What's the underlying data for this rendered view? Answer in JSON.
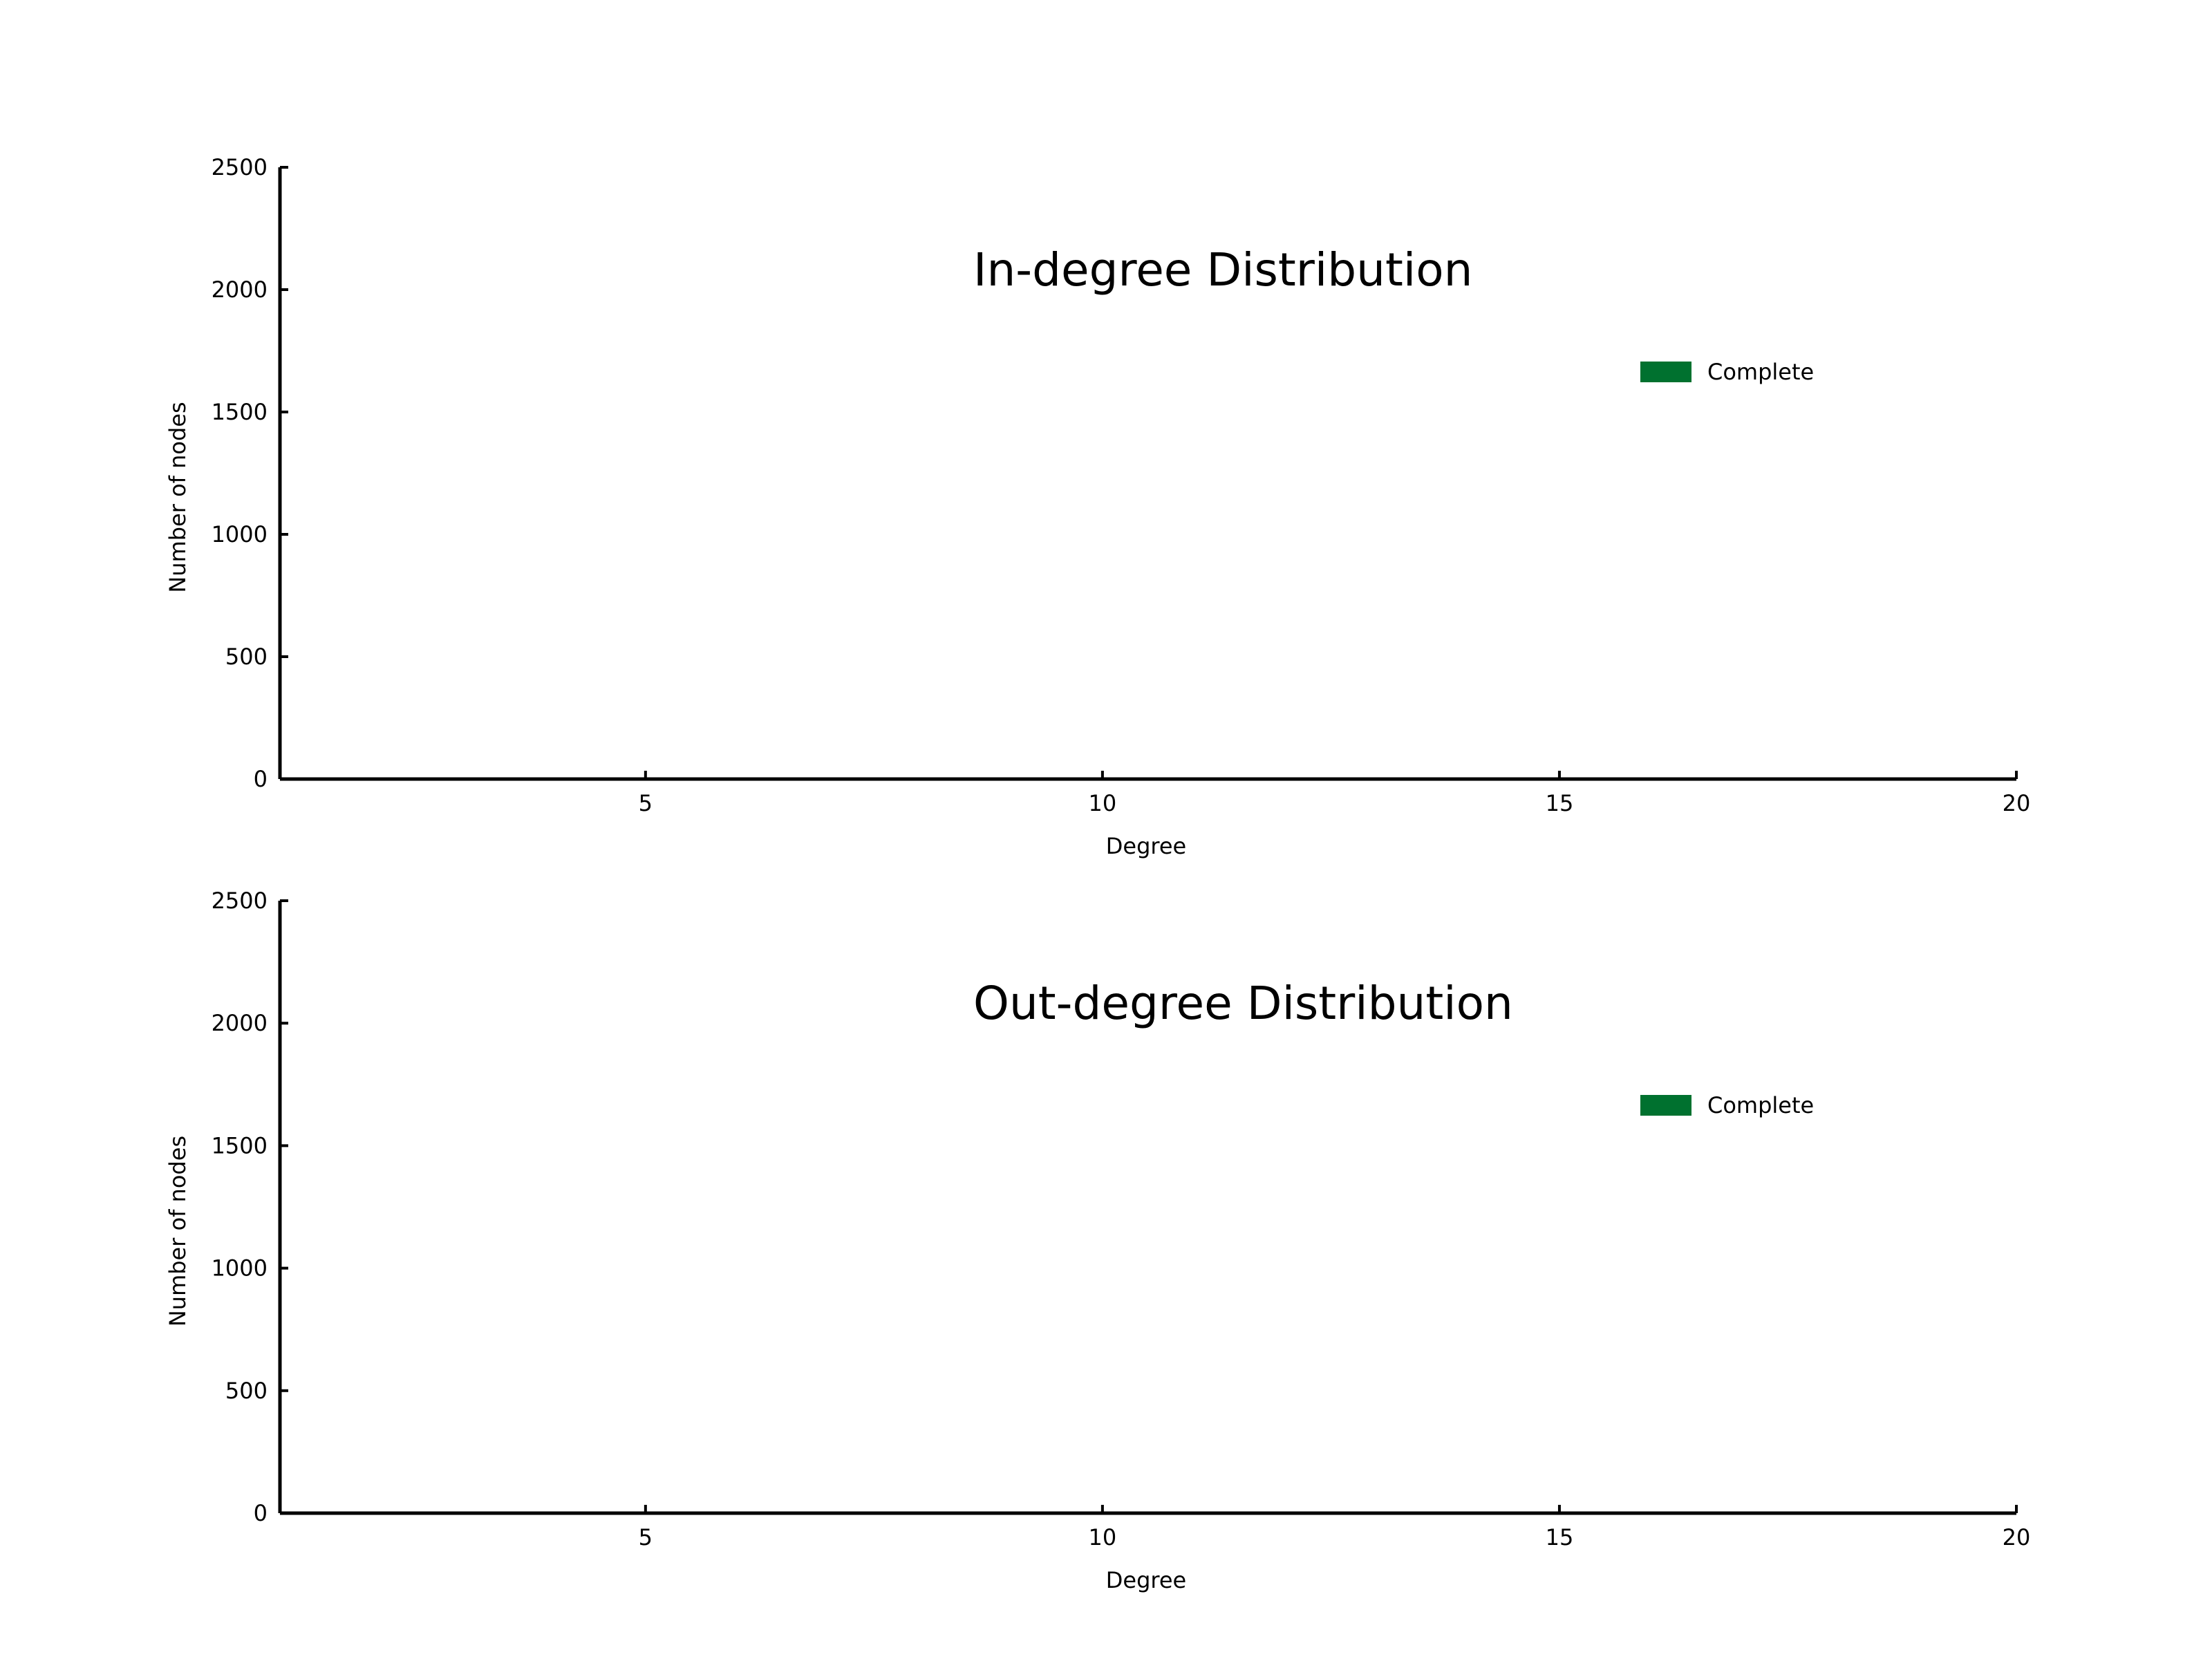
{
  "chart_data": [
    {
      "type": "bar",
      "title": "In-degree Distribution",
      "xlabel": "Degree",
      "ylabel": "Number of nodes",
      "xlim": [
        1,
        20
      ],
      "ylim": [
        0,
        2500
      ],
      "x_ticks": [
        "5",
        "10",
        "15",
        "20"
      ],
      "y_ticks": [
        "0",
        "500",
        "1000",
        "1500",
        "2000",
        "2500"
      ],
      "grid": false,
      "legend_position": "upper-right",
      "series": [
        {
          "name": "Complete",
          "color": "#00712f",
          "x": [],
          "values": []
        }
      ]
    },
    {
      "type": "bar",
      "title": "Out-degree Distribution",
      "xlabel": "Degree",
      "ylabel": "Number of nodes",
      "xlim": [
        1,
        20
      ],
      "ylim": [
        0,
        2500
      ],
      "x_ticks": [
        "5",
        "10",
        "15",
        "20"
      ],
      "y_ticks": [
        "0",
        "500",
        "1000",
        "1500",
        "2000",
        "2500"
      ],
      "grid": false,
      "legend_position": "upper-right",
      "series": [
        {
          "name": "Complete",
          "color": "#00712f",
          "x": [],
          "values": []
        }
      ]
    }
  ]
}
